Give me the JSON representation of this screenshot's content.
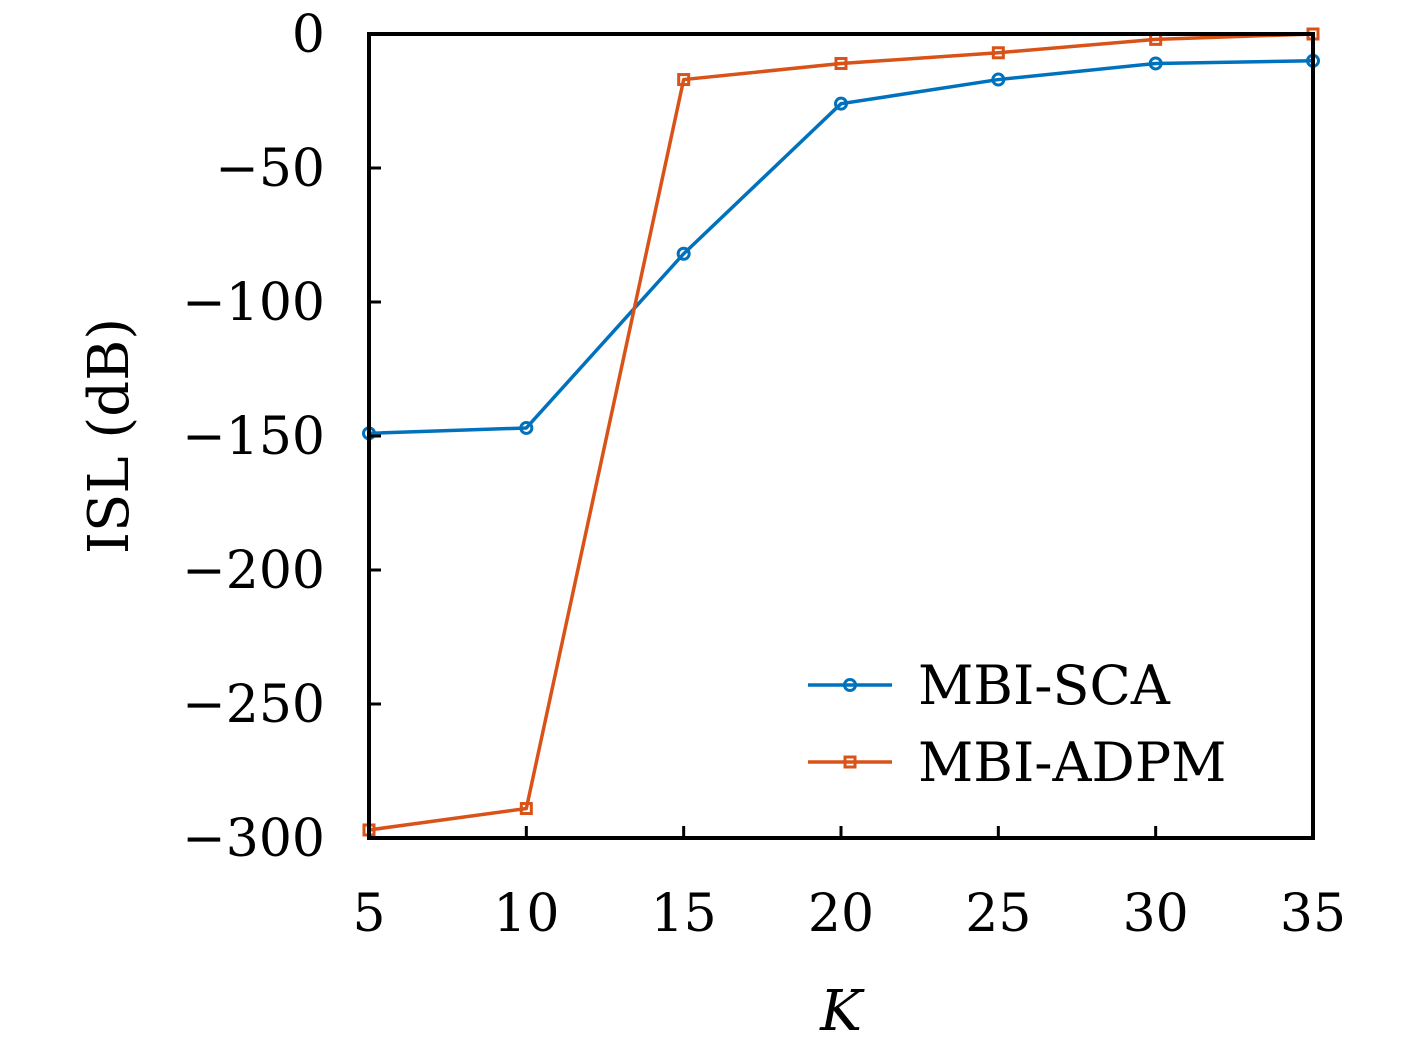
{
  "chart_data": {
    "type": "line",
    "title": "",
    "xlabel": "K",
    "ylabel": "ISL (dB)",
    "x": [
      5,
      10,
      15,
      20,
      25,
      30,
      35
    ],
    "xlim": [
      5,
      35
    ],
    "ylim": [
      -300,
      0
    ],
    "xticks": [
      5,
      10,
      15,
      20,
      25,
      30,
      35
    ],
    "yticks": [
      0,
      -50,
      -100,
      -150,
      -200,
      -250,
      -300
    ],
    "xtick_labels": [
      "5",
      "10",
      "15",
      "20",
      "25",
      "30",
      "35"
    ],
    "ytick_labels": [
      "0",
      "−50",
      "−100",
      "−150",
      "−200",
      "−250",
      "−300"
    ],
    "grid": false,
    "legend_position": "lower-right",
    "series": [
      {
        "name": "MBI-SCA",
        "color": "#0072BD",
        "marker": "circle",
        "values": [
          -149,
          -147,
          -82,
          -26,
          -17,
          -11,
          -10
        ]
      },
      {
        "name": "MBI-ADPM",
        "color": "#D95319",
        "marker": "square",
        "values": [
          -297,
          -289,
          -17,
          -11,
          -7,
          -2,
          0
        ]
      }
    ]
  }
}
